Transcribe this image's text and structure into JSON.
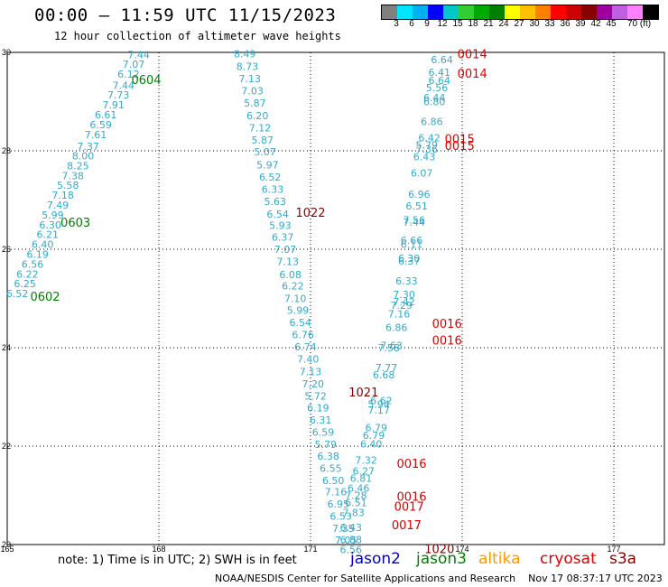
{
  "title": "00:00 – 11:59 UTC 11/15/2023",
  "subtitle": "12 hour collection of altimeter wave heights",
  "legend": {
    "colors": [
      "#808080",
      "#00e5ff",
      "#00b0f0",
      "#0000ff",
      "#00c8c8",
      "#33cc33",
      "#00aa00",
      "#008000",
      "#ffff00",
      "#ffc000",
      "#ff8000",
      "#ff0000",
      "#cc0000",
      "#880000",
      "#a000a0",
      "#c060e0",
      "#ff80ff",
      "#000000"
    ],
    "ticks": [
      "3",
      "6",
      "9",
      "12",
      "15",
      "18",
      "21",
      "24",
      "27",
      "30",
      "33",
      "36",
      "39",
      "42",
      "45",
      "70 (ft)"
    ]
  },
  "note": "note: 1) Time is in UTC; 2) SWH is in feet",
  "satellites": [
    {
      "name": "jason2",
      "color": "#0000cc"
    },
    {
      "name": "jason3",
      "color": "#008000"
    },
    {
      "name": "altika",
      "color": "#ff9900"
    },
    {
      "name": "cryosat",
      "color": "#dd0000"
    },
    {
      "name": "s3a",
      "color": "#880000"
    }
  ],
  "footer": "NOAA/NESDIS Center for Satellite Applications and Research    Nov 17 08:37:17 UTC 2023",
  "chart_data": {
    "type": "scatter",
    "xlim": [
      165,
      178
    ],
    "ylim": [
      20,
      30
    ],
    "x_ticks": [
      "165",
      "168",
      "171",
      "174",
      "177"
    ],
    "y_ticks": [
      "20",
      "22",
      "24",
      "26",
      "28",
      "30"
    ],
    "grid": true,
    "series": [
      {
        "name": "track-west",
        "color": "#33aacc",
        "points": [
          {
            "x": 167.6,
            "y": 29.95,
            "label": "7.44"
          },
          {
            "x": 167.5,
            "y": 29.76,
            "label": "7.07"
          },
          {
            "x": 167.4,
            "y": 29.56,
            "label": "6.12"
          },
          {
            "x": 167.3,
            "y": 29.33,
            "label": "7.44"
          },
          {
            "x": 167.2,
            "y": 29.14,
            "label": "7.73"
          },
          {
            "x": 167.1,
            "y": 28.94,
            "label": "7.91"
          },
          {
            "x": 166.95,
            "y": 28.73,
            "label": "6.61"
          },
          {
            "x": 166.85,
            "y": 28.53,
            "label": "6.59"
          },
          {
            "x": 166.75,
            "y": 28.33,
            "label": "7.61"
          },
          {
            "x": 166.6,
            "y": 28.09,
            "label": "7.37"
          },
          {
            "x": 166.5,
            "y": 27.9,
            "label": "8.00"
          },
          {
            "x": 166.4,
            "y": 27.7,
            "label": "8.25"
          },
          {
            "x": 166.3,
            "y": 27.5,
            "label": "7.38"
          },
          {
            "x": 166.2,
            "y": 27.3,
            "label": "5.58"
          },
          {
            "x": 166.1,
            "y": 27.1,
            "label": "7.18"
          },
          {
            "x": 166.0,
            "y": 26.9,
            "label": "7.49"
          },
          {
            "x": 165.9,
            "y": 26.7,
            "label": "5.99"
          },
          {
            "x": 165.85,
            "y": 26.5,
            "label": "6.30"
          },
          {
            "x": 165.8,
            "y": 26.3,
            "label": "6.21"
          },
          {
            "x": 165.7,
            "y": 26.1,
            "label": "6.40"
          },
          {
            "x": 165.6,
            "y": 25.9,
            "label": "6.19"
          },
          {
            "x": 165.5,
            "y": 25.7,
            "label": "6.56"
          },
          {
            "x": 165.4,
            "y": 25.5,
            "label": "6.22"
          },
          {
            "x": 165.35,
            "y": 25.3,
            "label": "6.25"
          },
          {
            "x": 165.2,
            "y": 25.1,
            "label": "6.52"
          }
        ]
      },
      {
        "name": "track-middle",
        "color": "#33aacc",
        "points": [
          {
            "x": 169.7,
            "y": 29.97,
            "label": "8.49"
          },
          {
            "x": 169.75,
            "y": 29.72,
            "label": "8.73"
          },
          {
            "x": 169.8,
            "y": 29.47,
            "label": "7.13"
          },
          {
            "x": 169.85,
            "y": 29.22,
            "label": "7.03"
          },
          {
            "x": 169.9,
            "y": 28.97,
            "label": "5.87"
          },
          {
            "x": 169.95,
            "y": 28.72,
            "label": "6.20"
          },
          {
            "x": 170.0,
            "y": 28.47,
            "label": "7.12"
          },
          {
            "x": 170.05,
            "y": 28.22,
            "label": "5.87"
          },
          {
            "x": 170.1,
            "y": 27.98,
            "label": "5.07"
          },
          {
            "x": 170.15,
            "y": 27.72,
            "label": "5.97"
          },
          {
            "x": 170.2,
            "y": 27.47,
            "label": "6.52"
          },
          {
            "x": 170.25,
            "y": 27.22,
            "label": "6.33"
          },
          {
            "x": 170.3,
            "y": 26.97,
            "label": "5.63"
          },
          {
            "x": 170.35,
            "y": 26.72,
            "label": "6.54"
          },
          {
            "x": 170.4,
            "y": 26.49,
            "label": "5.93"
          },
          {
            "x": 170.45,
            "y": 26.25,
            "label": "6.37"
          },
          {
            "x": 170.5,
            "y": 26.0,
            "label": "7.07"
          },
          {
            "x": 170.55,
            "y": 25.75,
            "label": "7.13"
          },
          {
            "x": 170.6,
            "y": 25.49,
            "label": "6.08"
          },
          {
            "x": 170.65,
            "y": 25.26,
            "label": "6.22"
          },
          {
            "x": 170.7,
            "y": 25.0,
            "label": "7.10"
          },
          {
            "x": 170.75,
            "y": 24.76,
            "label": "5.99"
          },
          {
            "x": 170.8,
            "y": 24.51,
            "label": "6.54"
          },
          {
            "x": 170.85,
            "y": 24.27,
            "label": "6.76"
          },
          {
            "x": 170.9,
            "y": 24.02,
            "label": "6.74"
          },
          {
            "x": 170.95,
            "y": 23.77,
            "label": "7.40"
          },
          {
            "x": 171.0,
            "y": 23.51,
            "label": "7.13"
          },
          {
            "x": 171.05,
            "y": 23.27,
            "label": "7.20"
          },
          {
            "x": 171.1,
            "y": 23.02,
            "label": "5.72"
          },
          {
            "x": 171.15,
            "y": 22.78,
            "label": "6.19"
          },
          {
            "x": 171.2,
            "y": 22.53,
            "label": "6.31"
          },
          {
            "x": 171.25,
            "y": 22.28,
            "label": "6.59"
          },
          {
            "x": 171.3,
            "y": 22.04,
            "label": "5.79"
          },
          {
            "x": 171.35,
            "y": 21.8,
            "label": "6.38"
          },
          {
            "x": 171.4,
            "y": 21.55,
            "label": "6.55"
          },
          {
            "x": 171.45,
            "y": 21.3,
            "label": "6.50"
          },
          {
            "x": 171.5,
            "y": 21.07,
            "label": "7.16"
          },
          {
            "x": 171.55,
            "y": 20.83,
            "label": "6.95"
          },
          {
            "x": 171.6,
            "y": 20.58,
            "label": "6.53"
          },
          {
            "x": 171.65,
            "y": 20.33,
            "label": "7.35"
          },
          {
            "x": 171.7,
            "y": 20.09,
            "label": "7.05"
          }
        ]
      },
      {
        "name": "track-east",
        "color": "#33aacc",
        "points": [
          {
            "x": 173.6,
            "y": 29.85,
            "label": "6.64"
          },
          {
            "x": 173.55,
            "y": 29.6,
            "label": "6.41"
          },
          {
            "x": 173.55,
            "y": 29.43,
            "label": "6.64"
          },
          {
            "x": 173.5,
            "y": 29.28,
            "label": "5.56"
          },
          {
            "x": 173.45,
            "y": 29.08,
            "label": "6.44"
          },
          {
            "x": 173.45,
            "y": 29.0,
            "label": "6.80"
          },
          {
            "x": 173.4,
            "y": 28.6,
            "label": "6.86"
          },
          {
            "x": 173.35,
            "y": 28.27,
            "label": "6.42"
          },
          {
            "x": 173.3,
            "y": 28.12,
            "label": "5.79"
          },
          {
            "x": 173.3,
            "y": 28.04,
            "label": "7.36"
          },
          {
            "x": 173.25,
            "y": 27.88,
            "label": "6.43"
          },
          {
            "x": 173.2,
            "y": 27.55,
            "label": "6.07"
          },
          {
            "x": 173.15,
            "y": 27.12,
            "label": "6.96"
          },
          {
            "x": 173.1,
            "y": 26.88,
            "label": "6.51"
          },
          {
            "x": 173.05,
            "y": 26.6,
            "label": "7.56"
          },
          {
            "x": 173.05,
            "y": 26.55,
            "label": "7.44"
          },
          {
            "x": 173.0,
            "y": 26.18,
            "label": "6.66"
          },
          {
            "x": 173.0,
            "y": 26.1,
            "label": "6.11"
          },
          {
            "x": 172.95,
            "y": 25.82,
            "label": "6.30"
          },
          {
            "x": 172.95,
            "y": 25.76,
            "label": "6.37"
          },
          {
            "x": 172.9,
            "y": 25.36,
            "label": "6.33"
          },
          {
            "x": 172.85,
            "y": 25.08,
            "label": "7.30"
          },
          {
            "x": 172.85,
            "y": 24.94,
            "label": "7.42"
          },
          {
            "x": 172.8,
            "y": 24.86,
            "label": "7.29"
          },
          {
            "x": 172.75,
            "y": 24.69,
            "label": "7.16"
          },
          {
            "x": 172.7,
            "y": 24.41,
            "label": "6.86"
          },
          {
            "x": 172.6,
            "y": 24.05,
            "label": "7.63"
          },
          {
            "x": 172.55,
            "y": 24.0,
            "label": "7.58"
          },
          {
            "x": 172.5,
            "y": 23.6,
            "label": "7.77"
          },
          {
            "x": 172.45,
            "y": 23.45,
            "label": "6.68"
          },
          {
            "x": 172.4,
            "y": 22.93,
            "label": "6.62"
          },
          {
            "x": 172.35,
            "y": 22.85,
            "label": "5.94"
          },
          {
            "x": 172.35,
            "y": 22.73,
            "label": "7.17"
          },
          {
            "x": 172.3,
            "y": 22.38,
            "label": "6.79"
          },
          {
            "x": 172.25,
            "y": 22.22,
            "label": "6.79"
          },
          {
            "x": 172.2,
            "y": 22.05,
            "label": "6.40"
          },
          {
            "x": 172.1,
            "y": 21.72,
            "label": "7.32"
          },
          {
            "x": 172.05,
            "y": 21.5,
            "label": "6.27"
          },
          {
            "x": 172.0,
            "y": 21.35,
            "label": "6.81"
          },
          {
            "x": 171.95,
            "y": 21.15,
            "label": "6.46"
          },
          {
            "x": 171.9,
            "y": 21.0,
            "label": "7.28"
          },
          {
            "x": 171.9,
            "y": 20.85,
            "label": "6.51"
          },
          {
            "x": 171.85,
            "y": 20.65,
            "label": "7.83"
          },
          {
            "x": 171.8,
            "y": 20.35,
            "label": "6.43"
          },
          {
            "x": 171.8,
            "y": 20.1,
            "label": "6.88"
          },
          {
            "x": 171.8,
            "y": 19.9,
            "label": "6.56"
          }
        ]
      }
    ],
    "annotations": [
      {
        "text": "0604",
        "x": 167.75,
        "y": 29.45,
        "color": "#008000",
        "size": 13
      },
      {
        "text": "0603",
        "x": 166.35,
        "y": 26.55,
        "color": "#008000",
        "size": 13
      },
      {
        "text": "0602",
        "x": 165.75,
        "y": 25.05,
        "color": "#008000",
        "size": 13
      },
      {
        "text": "1022",
        "x": 171.0,
        "y": 26.75,
        "color": "#880000",
        "size": 13
      },
      {
        "text": "1021",
        "x": 172.05,
        "y": 23.1,
        "color": "#880000",
        "size": 13
      },
      {
        "text": "1020",
        "x": 173.55,
        "y": 19.92,
        "color": "#880000",
        "size": 13
      },
      {
        "text": "0014",
        "x": 174.2,
        "y": 29.97,
        "color": "#dd0000",
        "size": 13
      },
      {
        "text": "0014",
        "x": 174.2,
        "y": 29.58,
        "color": "#dd0000",
        "size": 13
      },
      {
        "text": "0015",
        "x": 173.95,
        "y": 28.25,
        "color": "#dd0000",
        "size": 13
      },
      {
        "text": "0015",
        "x": 173.95,
        "y": 28.11,
        "color": "#dd0000",
        "size": 13
      },
      {
        "text": "0016",
        "x": 173.7,
        "y": 24.5,
        "color": "#dd0000",
        "size": 13
      },
      {
        "text": "0016",
        "x": 173.7,
        "y": 24.16,
        "color": "#dd0000",
        "size": 13
      },
      {
        "text": "0016",
        "x": 173.0,
        "y": 21.65,
        "color": "#dd0000",
        "size": 13
      },
      {
        "text": "0016",
        "x": 173.0,
        "y": 20.98,
        "color": "#dd0000",
        "size": 13
      },
      {
        "text": "0017",
        "x": 172.95,
        "y": 20.78,
        "color": "#dd0000",
        "size": 13
      },
      {
        "text": "0017",
        "x": 172.9,
        "y": 20.4,
        "color": "#dd0000",
        "size": 13
      }
    ]
  }
}
